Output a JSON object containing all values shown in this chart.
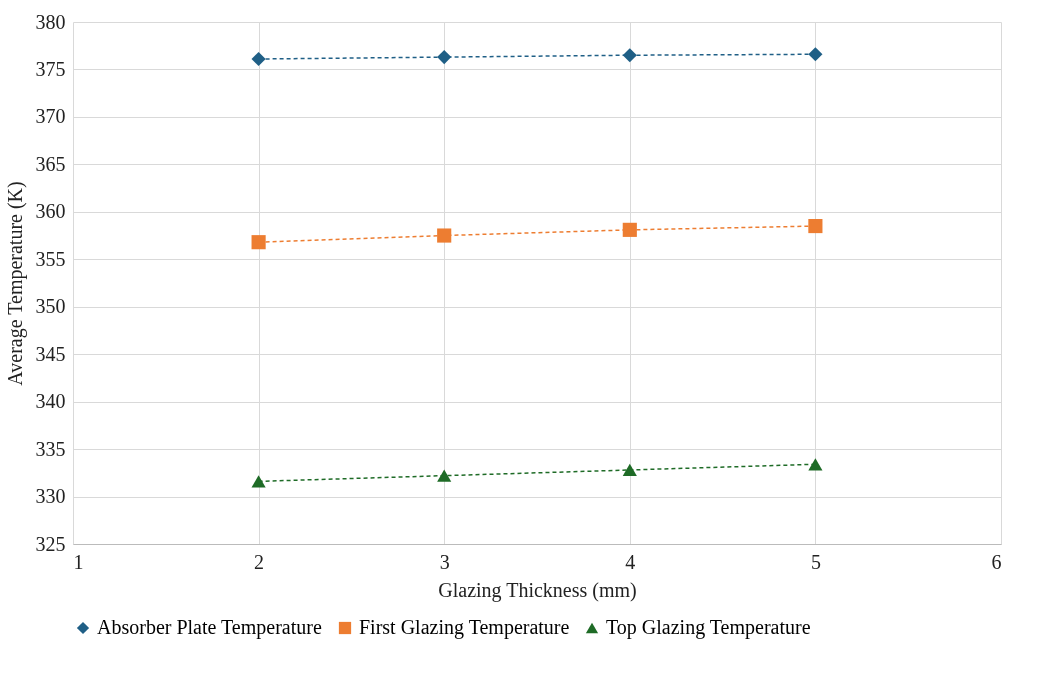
{
  "chart_data": {
    "type": "line",
    "xlabel": "Glazing Thickness (mm)",
    "ylabel": "Average Temperature (K)",
    "x": [
      2,
      3,
      4,
      5
    ],
    "series": [
      {
        "name": "Absorber Plate Temperature",
        "color": "#1f5f86",
        "marker": "diamond",
        "values": [
          376.1,
          376.3,
          376.5,
          376.6
        ]
      },
      {
        "name": "First Glazing Temperature",
        "color": "#ed7d31",
        "marker": "square",
        "values": [
          356.8,
          357.5,
          358.1,
          358.5
        ]
      },
      {
        "name": "Top Glazing Temperature",
        "color": "#1e6b26",
        "marker": "triangle",
        "values": [
          331.6,
          332.2,
          332.8,
          333.4
        ]
      }
    ],
    "xlim": [
      1,
      6
    ],
    "xticks": [
      1,
      2,
      3,
      4,
      5,
      6
    ],
    "ylim": [
      325,
      380
    ],
    "yticks": [
      325,
      330,
      335,
      340,
      345,
      350,
      355,
      360,
      365,
      370,
      375,
      380
    ],
    "grid": true,
    "legend": "bottom",
    "line_style": "dashed"
  }
}
